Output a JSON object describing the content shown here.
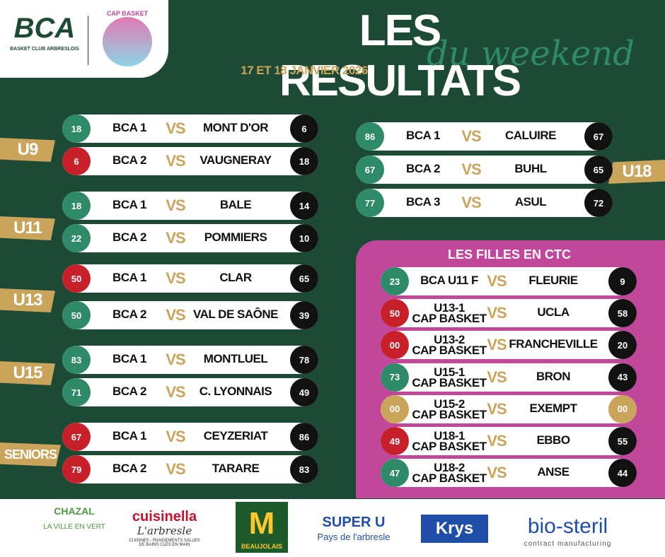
{
  "header": {
    "club": "BCA",
    "club_full": "BASKET CLUB ARBRESLOIS",
    "partner": "CAP BASKET",
    "title": "LES RESULTATS",
    "subtitle": "du weekend",
    "date": "17 ET 18 JANVIER 2026"
  },
  "left_groups": [
    {
      "category": "U9",
      "matches": [
        {
          "home_score": "18",
          "home": "BCA 1",
          "vs": "VS",
          "away": "MONT D'OR",
          "away_score": "6"
        },
        {
          "home_score": "6",
          "home": "BCA 2",
          "vs": "VS",
          "away": "VAUGNERAY",
          "away_score": "18"
        }
      ]
    },
    {
      "category": "U11",
      "matches": [
        {
          "home_score": "18",
          "home": "BCA 1",
          "vs": "VS",
          "away": "BALE",
          "away_score": "14"
        },
        {
          "home_score": "22",
          "home": "BCA 2",
          "vs": "VS",
          "away": "POMMIERS",
          "away_score": "10"
        }
      ]
    },
    {
      "category": "U13",
      "matches": [
        {
          "home_score": "50",
          "home": "BCA 1",
          "vs": "VS",
          "away": "CLAR",
          "away_score": "65"
        },
        {
          "home_score": "50",
          "home": "BCA 2",
          "vs": "VS",
          "away": "VAL DE SAÔNE",
          "away_score": "39"
        }
      ]
    },
    {
      "category": "U15",
      "matches": [
        {
          "home_score": "83",
          "home": "BCA 1",
          "vs": "VS",
          "away": "MONTLUEL",
          "away_score": "78"
        },
        {
          "home_score": "71",
          "home": "BCA 2",
          "vs": "VS",
          "away": "C. LYONNAIS",
          "away_score": "49"
        }
      ]
    },
    {
      "category": "SENIORS",
      "matches": [
        {
          "home_score": "67",
          "home": "BCA 1",
          "vs": "VS",
          "away": "CEYZERIAT",
          "away_score": "86"
        },
        {
          "home_score": "79",
          "home": "BCA 2",
          "vs": "VS",
          "away": "TARARE",
          "away_score": "83"
        }
      ]
    }
  ],
  "right_group": {
    "category": "U18",
    "matches": [
      {
        "home_score": "86",
        "home": "BCA 1",
        "vs": "VS",
        "away": "CALUIRE",
        "away_score": "67"
      },
      {
        "home_score": "67",
        "home": "BCA 2",
        "vs": "VS",
        "away": "BUHL",
        "away_score": "65"
      },
      {
        "home_score": "77",
        "home": "BCA 3",
        "vs": "VS",
        "away": "ASUL",
        "away_score": "72"
      }
    ]
  },
  "ctc": {
    "title": "LES FILLES EN CTC",
    "matches": [
      {
        "home_score": "23",
        "home": "BCA U11 F",
        "vs": "VS",
        "away": "FLEURIE",
        "away_score": "9"
      },
      {
        "home_score": "50",
        "home": "U13-1\nCAP BASKET",
        "vs": "VS",
        "away": "UCLA",
        "away_score": "58"
      },
      {
        "home_score": "00",
        "home": "U13-2\nCAP BASKET",
        "vs": "VS",
        "away": "FRANCHEVILLE",
        "away_score": "20"
      },
      {
        "home_score": "73",
        "home": "U15-1\nCAP BASKET",
        "vs": "VS",
        "away": "BRON",
        "away_score": "43"
      },
      {
        "home_score": "00",
        "home": "U15-2\nCAP BASKET",
        "vs": "VS",
        "away": "EXEMPT",
        "away_score": "00"
      },
      {
        "home_score": "49",
        "home": "U18-1\nCAP BASKET",
        "vs": "VS",
        "away": "EBBO",
        "away_score": "55"
      },
      {
        "home_score": "47",
        "home": "U18-2\nCAP BASKET",
        "vs": "VS",
        "away": "ANSE",
        "away_score": "44"
      }
    ]
  },
  "sponsors": {
    "chazal": "CHAZAL",
    "chazal_tag": "LA VILLE EN VERT",
    "cuisinella": "cuisinella",
    "cuisinella_city": "L'arbresle",
    "cuisinella_tag": "CUISINES - RANGEMENTS SALLES DE BAINS CLÉS EN MAIN",
    "mcdo": "BEAUJOLAIS",
    "superu": "SUPER U",
    "superu_tag": "Pays de l'arbresle",
    "krys": "Krys",
    "biosteril": "bio-steril",
    "biosteril_tag": "contract manufacturing"
  }
}
